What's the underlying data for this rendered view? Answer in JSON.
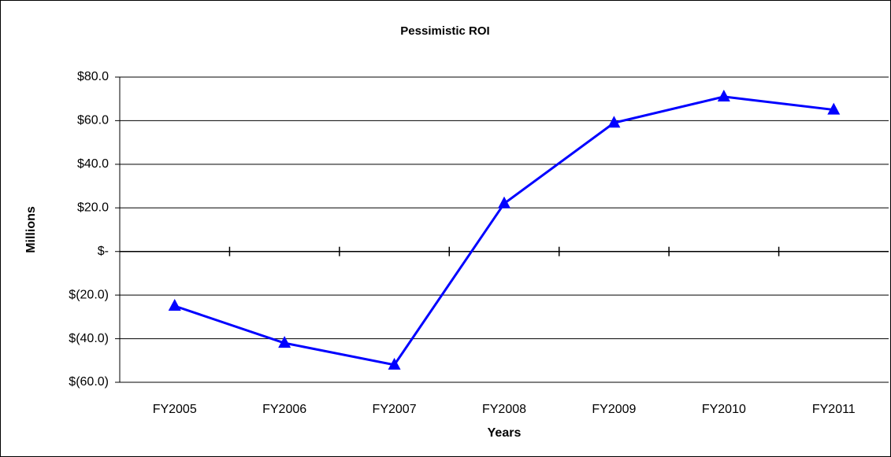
{
  "chart_data": {
    "type": "line",
    "title": "Pessimistic ROI",
    "x_label": "Years",
    "y_label": "Millions",
    "categories": [
      "FY2005",
      "FY2006",
      "FY2007",
      "FY2008",
      "FY2009",
      "FY2010",
      "FY2011"
    ],
    "series": [
      {
        "name": "Pessimistic ROI",
        "color": "#0000ff",
        "values": [
          -25,
          -42,
          -52,
          22,
          59,
          71,
          65
        ]
      }
    ],
    "ylim": [
      -60,
      80
    ],
    "yticks": [
      {
        "value": -60,
        "label": "$(60.0)"
      },
      {
        "value": -40,
        "label": "$(40.0)"
      },
      {
        "value": -20,
        "label": "$(20.0)"
      },
      {
        "value": 0,
        "label": "$-"
      },
      {
        "value": 20,
        "label": "$20.0"
      },
      {
        "value": 40,
        "label": "$40.0"
      },
      {
        "value": 60,
        "label": "$60.0"
      },
      {
        "value": 80,
        "label": "$80.0"
      }
    ],
    "grid": true
  }
}
